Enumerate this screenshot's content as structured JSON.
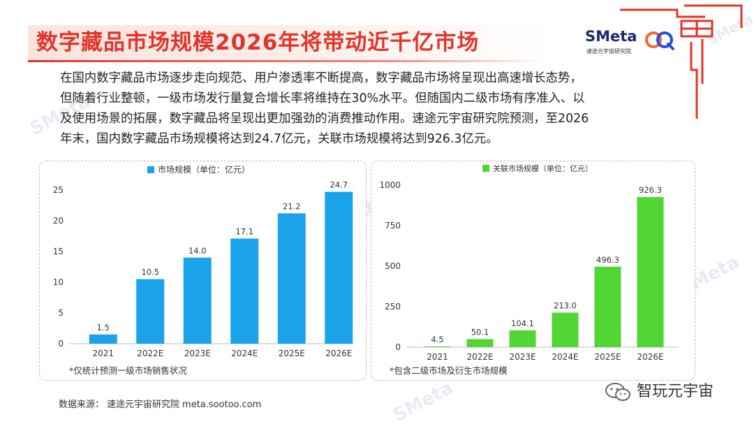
{
  "header": {
    "title": "数字藏品市场规模2026年将带动近千亿市场"
  },
  "logo": {
    "wordmark": "SMeta",
    "subtitle": "速途元宇宙研究院"
  },
  "paragraph": {
    "lines": [
      "在国内数字藏品市场逐步走向规范、用户渗透率不断提高，数字藏品市场将呈现出高速增长态势，",
      "但随着行业整顿，一级市场发行量复合增长率将维持在30%水平。但随国内二级市场有序准入、以",
      "及使用场景的拓展，数字藏品将呈现出更加强劲的消费推动作用。速途元宇宙研究院预测，至2026",
      "年末，国内数字藏品市场规模将达到24.7亿元，关联市场规模将达到926.3亿元。"
    ]
  },
  "chart_data": [
    {
      "type": "bar",
      "legend": "市场规模（单位：亿元）",
      "legend_position": "top",
      "categories": [
        "2021",
        "2022E",
        "2023E",
        "2024E",
        "2025E",
        "2026E"
      ],
      "values": [
        1.5,
        10.5,
        14.0,
        17.1,
        21.2,
        24.7
      ],
      "value_labels": [
        "1.5",
        "10.5",
        "14.0",
        "17.1",
        "21.2",
        "24.7"
      ],
      "ylim": [
        0,
        25
      ],
      "yticks": [
        "0",
        "5",
        "10",
        "15",
        "20",
        "25"
      ],
      "grid": false,
      "color": "#1aa3ea",
      "note": "*仅统计预测一级市场销售状况"
    },
    {
      "type": "bar",
      "legend": "关联市场规模（单位：亿元）",
      "legend_position": "top",
      "categories": [
        "2021",
        "2022E",
        "2023E",
        "2024E",
        "2025E",
        "2026E"
      ],
      "values": [
        4.5,
        50.1,
        104.1,
        213.0,
        496.3,
        926.3
      ],
      "value_labels": [
        "4.5",
        "50.1",
        "104.1",
        "213.0",
        "496.3",
        "926.3"
      ],
      "ylim": [
        0,
        1000
      ],
      "yticks": [
        "0",
        "250",
        "500",
        "750",
        "1000"
      ],
      "grid": false,
      "color": "#52d633",
      "note": "*包含二级市场及衍生市场规模"
    }
  ],
  "footer": {
    "source_label": "数据来源：",
    "source_name": "速途元宇宙研究院",
    "source_url": "meta.sootoo.com"
  },
  "wechat": {
    "account": "智玩元宇宙"
  }
}
